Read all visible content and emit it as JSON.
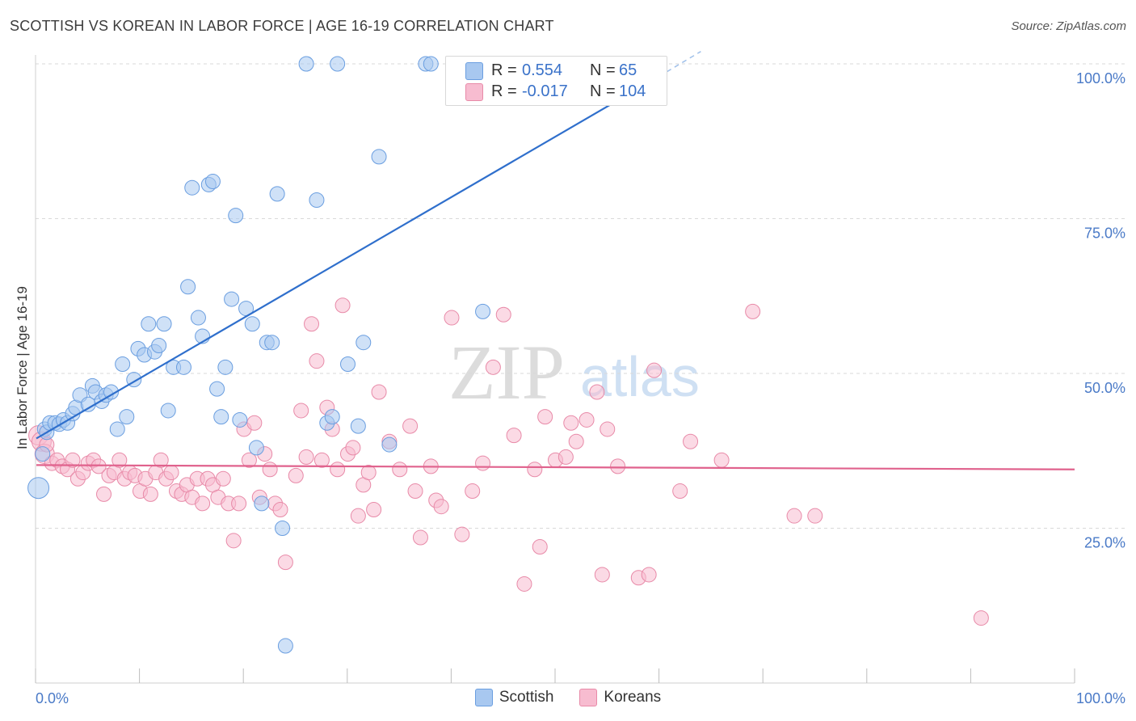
{
  "title": "SCOTTISH VS KOREAN IN LABOR FORCE | AGE 16-19 CORRELATION CHART",
  "source": "Source: ZipAtlas.com",
  "watermark": {
    "zip": "ZIP",
    "atlas": "atlas"
  },
  "legend": {
    "scottish": {
      "label": "Scottish",
      "color": "#a8c8f0",
      "stroke": "#6a9ee0"
    },
    "koreans": {
      "label": "Koreans",
      "color": "#f7bcd0",
      "stroke": "#e88aa8"
    }
  },
  "stats": {
    "scottish": {
      "r_label": "R =",
      "r_value": "0.554",
      "n_label": "N =",
      "n_value": "65"
    },
    "koreans": {
      "r_label": "R =",
      "r_value": "-0.017",
      "n_label": "N =",
      "n_value": "104"
    }
  },
  "chart_data": {
    "type": "scatter",
    "title": "SCOTTISH VS KOREAN IN LABOR FORCE | AGE 16-19 CORRELATION CHART",
    "xlabel": "",
    "ylabel": "In Labor Force | Age 16-19",
    "xlim": [
      0,
      100
    ],
    "ylim": [
      0,
      100
    ],
    "x_tick_labels": [
      "0.0%",
      "100.0%"
    ],
    "y_tick_labels": [
      "25.0%",
      "50.0%",
      "75.0%",
      "100.0%"
    ],
    "y_ticks": [
      25,
      50,
      75,
      100
    ],
    "grid": true,
    "legend_position": "bottom",
    "series": [
      {
        "name": "Scottish",
        "color": "#6a9ee0",
        "trend": {
          "x": [
            0,
            60
          ],
          "y": [
            39.5,
            98.0
          ],
          "dashed_to": [
            64,
            102
          ]
        },
        "points": [
          [
            0.2,
            31.5
          ],
          [
            0.6,
            37.0
          ],
          [
            0.8,
            41.0
          ],
          [
            1.0,
            40.5
          ],
          [
            1.3,
            42.0
          ],
          [
            1.8,
            42.0
          ],
          [
            2.2,
            41.8
          ],
          [
            2.6,
            42.5
          ],
          [
            3.0,
            42.0
          ],
          [
            3.5,
            43.5
          ],
          [
            3.8,
            44.5
          ],
          [
            4.2,
            46.5
          ],
          [
            5.0,
            45.0
          ],
          [
            5.4,
            48.0
          ],
          [
            5.7,
            47.0
          ],
          [
            6.3,
            45.5
          ],
          [
            6.7,
            46.5
          ],
          [
            7.2,
            47.0
          ],
          [
            7.8,
            41.0
          ],
          [
            8.3,
            51.5
          ],
          [
            8.7,
            43.0
          ],
          [
            9.4,
            49.0
          ],
          [
            9.8,
            54.0
          ],
          [
            10.4,
            53.0
          ],
          [
            10.8,
            58.0
          ],
          [
            11.4,
            53.5
          ],
          [
            11.8,
            54.5
          ],
          [
            12.3,
            58.0
          ],
          [
            12.7,
            44.0
          ],
          [
            13.2,
            51.0
          ],
          [
            14.2,
            51.0
          ],
          [
            14.6,
            64.0
          ],
          [
            15.0,
            80.0
          ],
          [
            15.6,
            59.0
          ],
          [
            16.0,
            56.0
          ],
          [
            16.6,
            80.5
          ],
          [
            17.0,
            81.0
          ],
          [
            17.4,
            47.5
          ],
          [
            17.8,
            43.0
          ],
          [
            18.2,
            51.0
          ],
          [
            18.8,
            62.0
          ],
          [
            19.2,
            75.5
          ],
          [
            19.6,
            42.5
          ],
          [
            20.2,
            60.5
          ],
          [
            20.8,
            58.0
          ],
          [
            21.2,
            38.0
          ],
          [
            21.7,
            29.0
          ],
          [
            22.2,
            55.0
          ],
          [
            22.7,
            55.0
          ],
          [
            23.2,
            79.0
          ],
          [
            23.7,
            25.0
          ],
          [
            24.0,
            6.0
          ],
          [
            26.0,
            100.0
          ],
          [
            27.0,
            78.0
          ],
          [
            28.0,
            42.0
          ],
          [
            29.0,
            100.0
          ],
          [
            28.5,
            43.0
          ],
          [
            30.0,
            51.5
          ],
          [
            31.0,
            41.5
          ],
          [
            31.5,
            55.0
          ],
          [
            33.0,
            85.0
          ],
          [
            34.0,
            38.5
          ],
          [
            37.5,
            100.0
          ],
          [
            38.0,
            100.0
          ],
          [
            43.0,
            60.0
          ]
        ]
      },
      {
        "name": "Koreans",
        "color": "#e88aa8",
        "trend": {
          "x": [
            0,
            100
          ],
          "y": [
            35.2,
            34.5
          ]
        },
        "points": [
          [
            0.2,
            40.0
          ],
          [
            0.5,
            39.0
          ],
          [
            0.8,
            37.0
          ],
          [
            1.0,
            38.5
          ],
          [
            1.5,
            35.5
          ],
          [
            2.0,
            36.0
          ],
          [
            2.5,
            35.0
          ],
          [
            3.0,
            34.5
          ],
          [
            3.5,
            36.0
          ],
          [
            4.0,
            33.0
          ],
          [
            4.5,
            34.0
          ],
          [
            5.0,
            35.5
          ],
          [
            5.5,
            36.0
          ],
          [
            6.0,
            35.0
          ],
          [
            6.5,
            30.5
          ],
          [
            7.0,
            33.5
          ],
          [
            7.5,
            34.0
          ],
          [
            8.0,
            36.0
          ],
          [
            8.5,
            33.0
          ],
          [
            9.0,
            34.0
          ],
          [
            9.5,
            33.5
          ],
          [
            10.0,
            31.0
          ],
          [
            10.5,
            33.0
          ],
          [
            11.0,
            30.5
          ],
          [
            11.5,
            34.0
          ],
          [
            12.0,
            36.0
          ],
          [
            12.5,
            33.0
          ],
          [
            13.0,
            34.0
          ],
          [
            13.5,
            31.0
          ],
          [
            14.0,
            30.5
          ],
          [
            14.5,
            32.0
          ],
          [
            15.0,
            30.0
          ],
          [
            15.5,
            33.0
          ],
          [
            16.0,
            29.0
          ],
          [
            16.5,
            33.0
          ],
          [
            17.0,
            32.0
          ],
          [
            17.5,
            30.0
          ],
          [
            18.0,
            33.0
          ],
          [
            18.5,
            29.0
          ],
          [
            19.0,
            23.0
          ],
          [
            19.5,
            29.0
          ],
          [
            20.0,
            41.0
          ],
          [
            20.5,
            36.0
          ],
          [
            21.0,
            42.0
          ],
          [
            21.5,
            30.0
          ],
          [
            22.0,
            37.0
          ],
          [
            22.5,
            34.5
          ],
          [
            23.0,
            29.0
          ],
          [
            23.5,
            28.0
          ],
          [
            24.0,
            19.5
          ],
          [
            25.0,
            33.5
          ],
          [
            25.5,
            44.0
          ],
          [
            26.0,
            36.5
          ],
          [
            26.5,
            58.0
          ],
          [
            27.0,
            52.0
          ],
          [
            27.5,
            36.0
          ],
          [
            28.0,
            44.5
          ],
          [
            28.5,
            41.0
          ],
          [
            29.0,
            34.5
          ],
          [
            29.5,
            61.0
          ],
          [
            30.0,
            37.0
          ],
          [
            30.5,
            38.0
          ],
          [
            31.0,
            27.0
          ],
          [
            31.5,
            32.0
          ],
          [
            32.0,
            34.0
          ],
          [
            32.5,
            28.0
          ],
          [
            33.0,
            47.0
          ],
          [
            34.0,
            39.0
          ],
          [
            35.0,
            34.5
          ],
          [
            36.0,
            41.5
          ],
          [
            36.5,
            31.0
          ],
          [
            37.0,
            23.5
          ],
          [
            38.0,
            35.0
          ],
          [
            38.5,
            29.5
          ],
          [
            39.0,
            28.5
          ],
          [
            40.0,
            59.0
          ],
          [
            41.0,
            24.0
          ],
          [
            42.0,
            31.0
          ],
          [
            43.0,
            35.5
          ],
          [
            44.0,
            51.0
          ],
          [
            45.0,
            59.5
          ],
          [
            46.0,
            40.0
          ],
          [
            47.0,
            16.0
          ],
          [
            48.0,
            34.5
          ],
          [
            48.5,
            22.0
          ],
          [
            49.0,
            43.0
          ],
          [
            50.0,
            36.0
          ],
          [
            51.0,
            36.5
          ],
          [
            51.5,
            42.0
          ],
          [
            52.0,
            39.0
          ],
          [
            53.0,
            42.5
          ],
          [
            54.0,
            47.0
          ],
          [
            54.5,
            17.5
          ],
          [
            55.0,
            41.0
          ],
          [
            56.0,
            35.0
          ],
          [
            58.0,
            17.0
          ],
          [
            59.0,
            17.5
          ],
          [
            59.5,
            50.5
          ],
          [
            62.0,
            31.0
          ],
          [
            63.0,
            39.0
          ],
          [
            66.0,
            36.0
          ],
          [
            69.0,
            60.0
          ],
          [
            73.0,
            27.0
          ],
          [
            75.0,
            27.0
          ],
          [
            91.0,
            10.5
          ]
        ]
      }
    ]
  }
}
